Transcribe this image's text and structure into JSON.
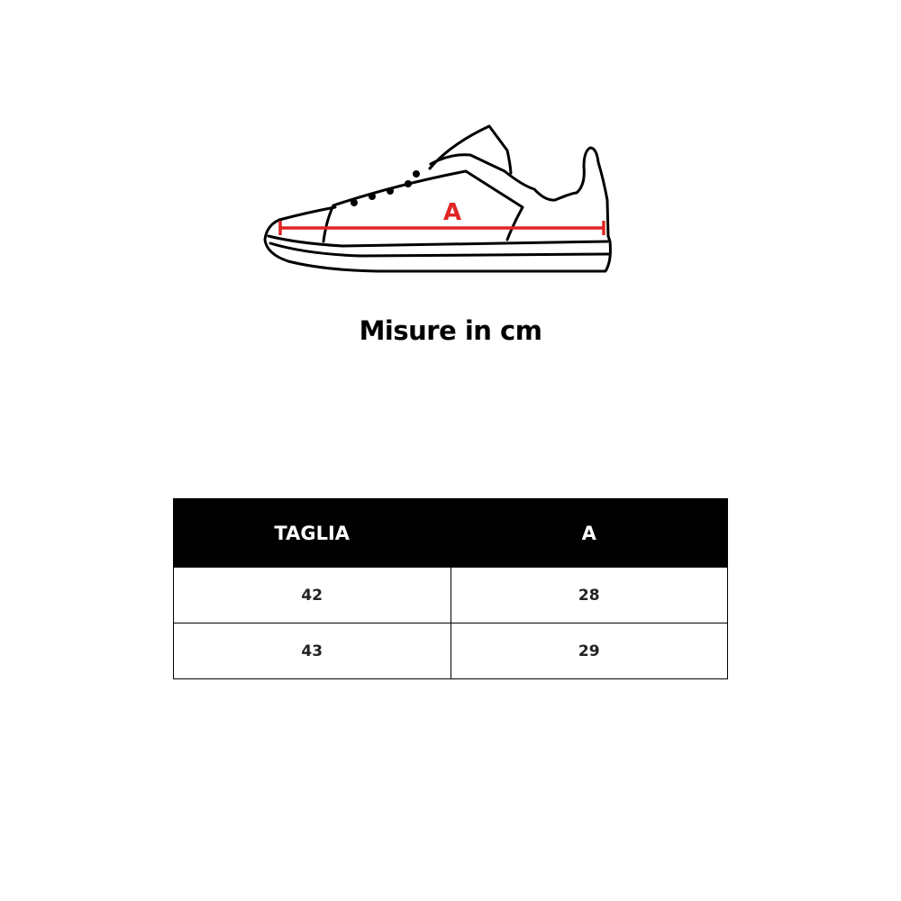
{
  "illustration": {
    "measure_label": "A",
    "measure_color": "#e02525",
    "icon": "sneaker-outline"
  },
  "title": "Misure in cm",
  "table": {
    "headers": [
      "TAGLIA",
      "A"
    ],
    "rows": [
      [
        "42",
        "28"
      ],
      [
        "43",
        "29"
      ]
    ]
  }
}
